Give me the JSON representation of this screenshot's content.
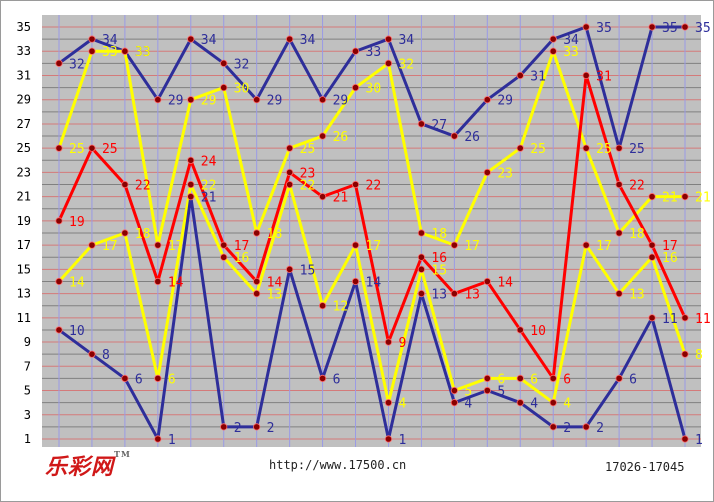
{
  "footer": {
    "logo_text": "乐彩网",
    "logo_mark": "TM",
    "url": "http://www.17500.cn",
    "range": "17026-17045"
  },
  "chart_data": {
    "type": "line",
    "ylim": [
      1,
      35
    ],
    "y_ticks": [
      1,
      3,
      5,
      7,
      9,
      11,
      13,
      15,
      17,
      19,
      21,
      23,
      25,
      27,
      29,
      31,
      33,
      35
    ],
    "x": [
      1,
      2,
      3,
      4,
      5,
      6,
      7,
      8,
      9,
      10,
      11,
      12,
      13,
      14,
      15,
      16,
      17,
      18,
      19,
      20
    ],
    "grid": true,
    "legend": "none",
    "colors": {
      "plot_bg": "#c0c0c0",
      "odd_grid": "#d47a7a",
      "even_grid": "#808080",
      "vgrid": "#9a9ae6",
      "marker": "#8a0000"
    },
    "series": [
      {
        "color": "#2e2e9a",
        "values": [
          32,
          34,
          33,
          29,
          34,
          32,
          29,
          34,
          29,
          33,
          34,
          27,
          26,
          29,
          31,
          34,
          35,
          25,
          35,
          35
        ]
      },
      {
        "color": "#ffff00",
        "values": [
          25,
          33,
          33,
          17,
          29,
          30,
          18,
          25,
          26,
          30,
          32,
          18,
          17,
          23,
          25,
          33,
          25,
          18,
          21,
          21
        ]
      },
      {
        "color": "#ff0000",
        "values": [
          19,
          25,
          22,
          14,
          24,
          17,
          14,
          23,
          21,
          22,
          9,
          16,
          13,
          14,
          10,
          6,
          31,
          22,
          17,
          11
        ]
      },
      {
        "color": "#ffff00",
        "values": [
          14,
          17,
          18,
          6,
          22,
          16,
          13,
          22,
          12,
          17,
          4,
          15,
          5,
          6,
          6,
          4,
          17,
          13,
          16,
          8
        ]
      },
      {
        "color": "#2e2e9a",
        "values": [
          10,
          8,
          6,
          1,
          21,
          2,
          2,
          15,
          6,
          14,
          1,
          13,
          4,
          5,
          4,
          2,
          2,
          6,
          11,
          1
        ]
      }
    ]
  }
}
